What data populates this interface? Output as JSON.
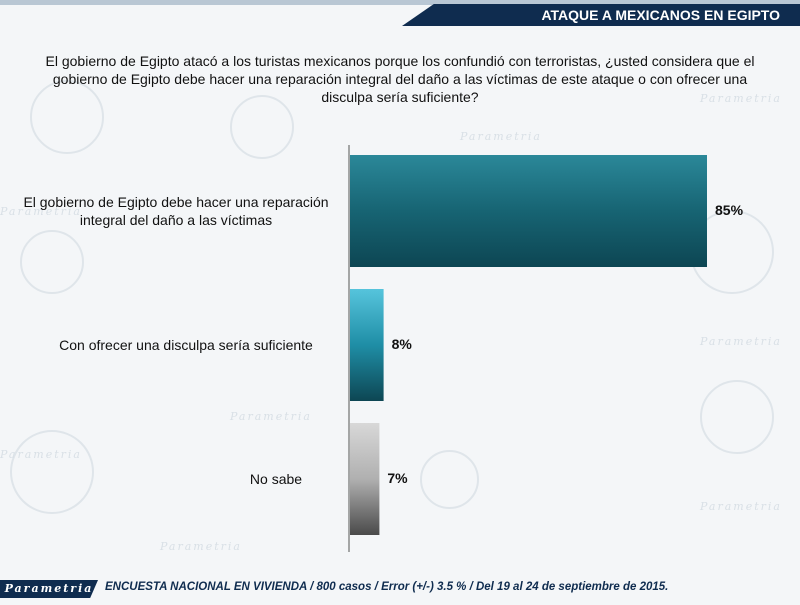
{
  "header": {
    "title": "ATAQUE A MEXICANOS EN EGIPTO"
  },
  "question": "El gobierno de Egipto atacó a los turistas mexicanos porque los confundió con terroristas, ¿usted considera que el gobierno de Egipto debe hacer una reparación integral del daño a las víctimas de este ataque o con ofrecer una disculpa sería suficiente?",
  "watermark": "Parametria",
  "chart_data": {
    "type": "bar",
    "orientation": "horizontal",
    "categories": [
      "El gobierno de Egipto debe hacer una reparación integral del daño a las víctimas",
      "Con ofrecer una disculpa sería suficiente",
      "No sabe"
    ],
    "values": [
      85,
      8,
      7
    ],
    "value_labels": [
      "85%",
      "8%",
      "7%"
    ],
    "xlim": [
      0,
      100
    ],
    "colors": [
      "#1c6f7e",
      "#2aa1bb",
      "#9a9a9a"
    ]
  },
  "footer": {
    "brand": "Parametria",
    "note": "ENCUESTA NACIONAL EN VIVIENDA / 800 casos / Error (+/-) 3.5 % / Del 19 al 24 de septiembre de 2015."
  }
}
